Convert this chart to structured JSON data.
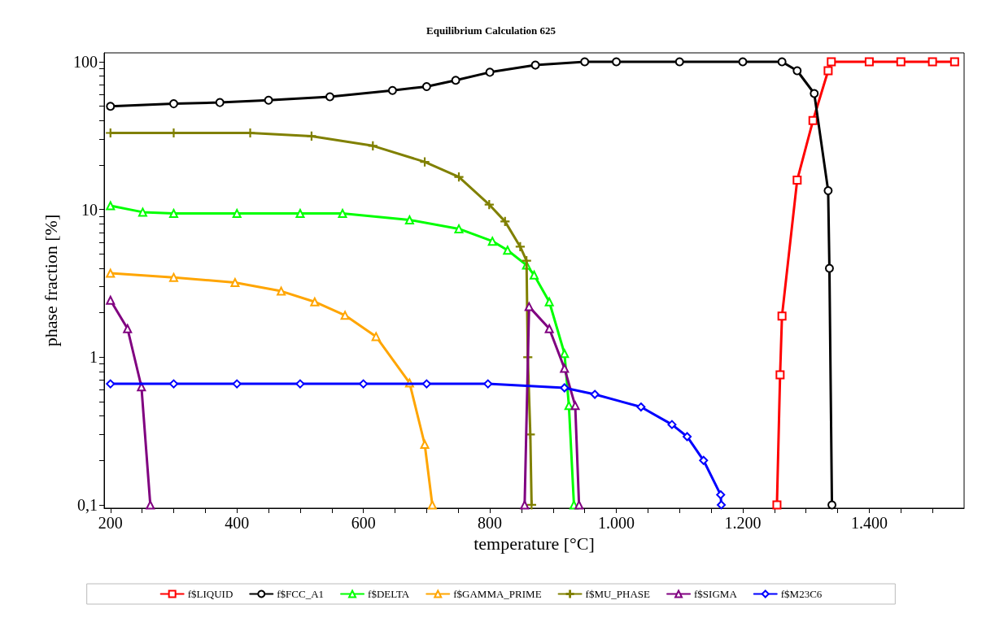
{
  "chart_data": {
    "type": "line",
    "title": "Equilibrium Calculation 625",
    "xlabel": "temperature [°C]",
    "ylabel": "phase fraction [%]",
    "log": "y",
    "grid": false,
    "legend": "bottom",
    "line_style": "solid",
    "xlim": [
      190,
      1550
    ],
    "ylim": [
      0.095,
      115
    ],
    "xticks": [
      200,
      {
        "value": 250,
        "label": null
      },
      {
        "value": 300,
        "label": null
      },
      {
        "value": 350,
        "label": null
      },
      400,
      {
        "value": 450,
        "label": null
      },
      {
        "value": 500,
        "label": null
      },
      {
        "value": 550,
        "label": null
      },
      600,
      {
        "value": 650,
        "label": null
      },
      {
        "value": 700,
        "label": null
      },
      {
        "value": 750,
        "label": null
      },
      800,
      {
        "value": 850,
        "label": null
      },
      {
        "value": 900,
        "label": null
      },
      {
        "value": 950,
        "label": null
      },
      {
        "value": 1000,
        "label": "1.000"
      },
      {
        "value": 1050,
        "label": null
      },
      {
        "value": 1100,
        "label": null
      },
      {
        "value": 1150,
        "label": null
      },
      {
        "value": 1200,
        "label": "1.200"
      },
      {
        "value": 1250,
        "label": null
      },
      {
        "value": 1300,
        "label": null
      },
      {
        "value": 1350,
        "label": null
      },
      {
        "value": 1400,
        "label": "1.400"
      },
      {
        "value": 1450,
        "label": null
      },
      {
        "value": 1500,
        "label": null
      }
    ],
    "yticks": [
      {
        "value": 0.1,
        "label": "0,1"
      },
      {
        "value": 0.2,
        "label": null
      },
      {
        "value": 0.3,
        "label": null
      },
      {
        "value": 0.4,
        "label": null
      },
      {
        "value": 0.5,
        "label": null
      },
      {
        "value": 0.6,
        "label": null
      },
      {
        "value": 0.7,
        "label": null
      },
      {
        "value": 0.8,
        "label": null
      },
      {
        "value": 0.9,
        "label": null
      },
      1,
      {
        "value": 2,
        "label": null
      },
      {
        "value": 3,
        "label": null
      },
      {
        "value": 4,
        "label": null
      },
      {
        "value": 5,
        "label": null
      },
      {
        "value": 6,
        "label": null
      },
      {
        "value": 7,
        "label": null
      },
      {
        "value": 8,
        "label": null
      },
      {
        "value": 9,
        "label": null
      },
      10,
      {
        "value": 20,
        "label": null
      },
      {
        "value": 30,
        "label": null
      },
      {
        "value": 40,
        "label": null
      },
      {
        "value": 50,
        "label": null
      },
      {
        "value": 60,
        "label": null
      },
      {
        "value": 70,
        "label": null
      },
      {
        "value": 80,
        "label": null
      },
      {
        "value": 90,
        "label": null
      },
      100
    ],
    "series": [
      {
        "name": "f$LIQUID",
        "color": "#ff0000",
        "marker": "square",
        "x": [
          1254,
          1259,
          1262,
          1286,
          1311,
          1335,
          1340,
          1400,
          1450,
          1500,
          1535
        ],
        "values": [
          0.1,
          0.76,
          1.9,
          15.8,
          40,
          87,
          100,
          100,
          100,
          100,
          100
        ]
      },
      {
        "name": "f$FCC_A1",
        "color": "#000000",
        "marker": "circle",
        "x": [
          200,
          300,
          373,
          450,
          547,
          646,
          700,
          746,
          800,
          872,
          950,
          1000,
          1100,
          1200,
          1262,
          1286,
          1313,
          1335,
          1337,
          1341
        ],
        "values": [
          50,
          52,
          53,
          55,
          58,
          64,
          68,
          75,
          85,
          95,
          100,
          100,
          100,
          100,
          100,
          87,
          61,
          13.4,
          4,
          0.1
        ]
      },
      {
        "name": "f$DELTA",
        "color": "#00ff00",
        "marker": "triangle",
        "x": [
          200,
          251,
          300,
          400,
          500,
          567,
          673,
          751,
          804,
          828,
          858,
          870,
          894,
          918,
          925,
          933
        ],
        "values": [
          10.6,
          9.6,
          9.4,
          9.4,
          9.4,
          9.4,
          8.5,
          7.4,
          6.1,
          5.3,
          4.2,
          3.6,
          2.37,
          1.06,
          0.47,
          0.1
        ]
      },
      {
        "name": "f$GAMMA_PRIME",
        "color": "#ffa500",
        "marker": "triangle",
        "x": [
          200,
          300,
          397,
          470,
          523,
          571,
          620,
          673,
          697,
          709
        ],
        "values": [
          3.7,
          3.47,
          3.2,
          2.8,
          2.37,
          1.92,
          1.38,
          0.67,
          0.257,
          0.1
        ]
      },
      {
        "name": "f$MU_PHASE",
        "color": "#808000",
        "marker": "cross",
        "x": [
          200,
          300,
          421,
          518,
          615,
          697,
          751,
          799,
          824,
          848,
          858,
          860,
          864,
          866
        ],
        "values": [
          33,
          33,
          33,
          31.4,
          27,
          21,
          16.6,
          10.8,
          8.3,
          5.6,
          4.5,
          1,
          0.3,
          0.1
        ]
      },
      {
        "name": "f$SIGMA",
        "color": "#800080",
        "marker": "triangle",
        "x": [
          200,
          227,
          249,
          263,
          500,
          855,
          862,
          894,
          918,
          935,
          941
        ],
        "values": [
          2.43,
          1.56,
          0.63,
          0.1,
          null,
          0.1,
          2.2,
          1.56,
          0.84,
          0.47,
          0.1
        ]
      },
      {
        "name": "f$M23C6",
        "color": "#0000ff",
        "marker": "diamond",
        "x": [
          200,
          300,
          400,
          500,
          600,
          700,
          797,
          918,
          966,
          1039,
          1088,
          1112,
          1138,
          1165,
          1166
        ],
        "values": [
          0.66,
          0.66,
          0.66,
          0.66,
          0.66,
          0.66,
          0.66,
          0.62,
          0.56,
          0.46,
          0.35,
          0.29,
          0.2,
          0.117,
          0.1
        ]
      }
    ]
  }
}
